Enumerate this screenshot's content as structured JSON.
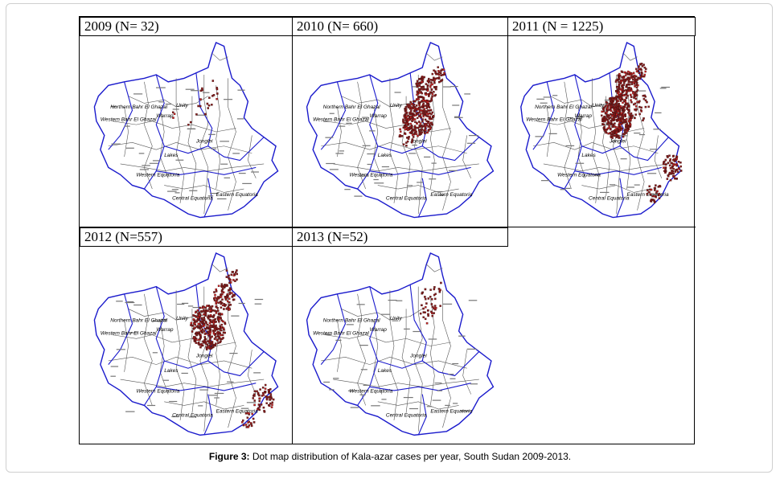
{
  "figure": {
    "caption_label": "Figure 3:",
    "caption_text": " Dot map distribution of Kala-azar cases per year, South Sudan 2009-2013."
  },
  "colors": {
    "border": "#1a1acc",
    "county": "#555555",
    "case_dot": "#8b1a1a",
    "case_dot_light": "#cc2222"
  },
  "map_labels": [
    "Northern Bahr El Ghazal",
    "Western Bahr El Ghazal",
    "Warrap",
    "Unity",
    "Lakes",
    "Jonglei",
    "Western Equatoria",
    "Central Equatoria",
    "Eastern Equatoria"
  ],
  "panels": [
    {
      "id": "2009",
      "title": "2009 (N= 32)",
      "year": 2009,
      "cases": 32,
      "intensity": "low"
    },
    {
      "id": "2010",
      "title": "2010 (N= 660)",
      "year": 2010,
      "cases": 660,
      "intensity": "high"
    },
    {
      "id": "2011",
      "title": "2011 (N = 1225)",
      "year": 2011,
      "cases": 1225,
      "intensity": "very-high"
    },
    {
      "id": "2012",
      "title": "2012 (N=557)",
      "year": 2012,
      "cases": 557,
      "intensity": "high"
    },
    {
      "id": "2013",
      "title": "2013 (N=52)",
      "year": 2013,
      "cases": 52,
      "intensity": "low"
    }
  ]
}
